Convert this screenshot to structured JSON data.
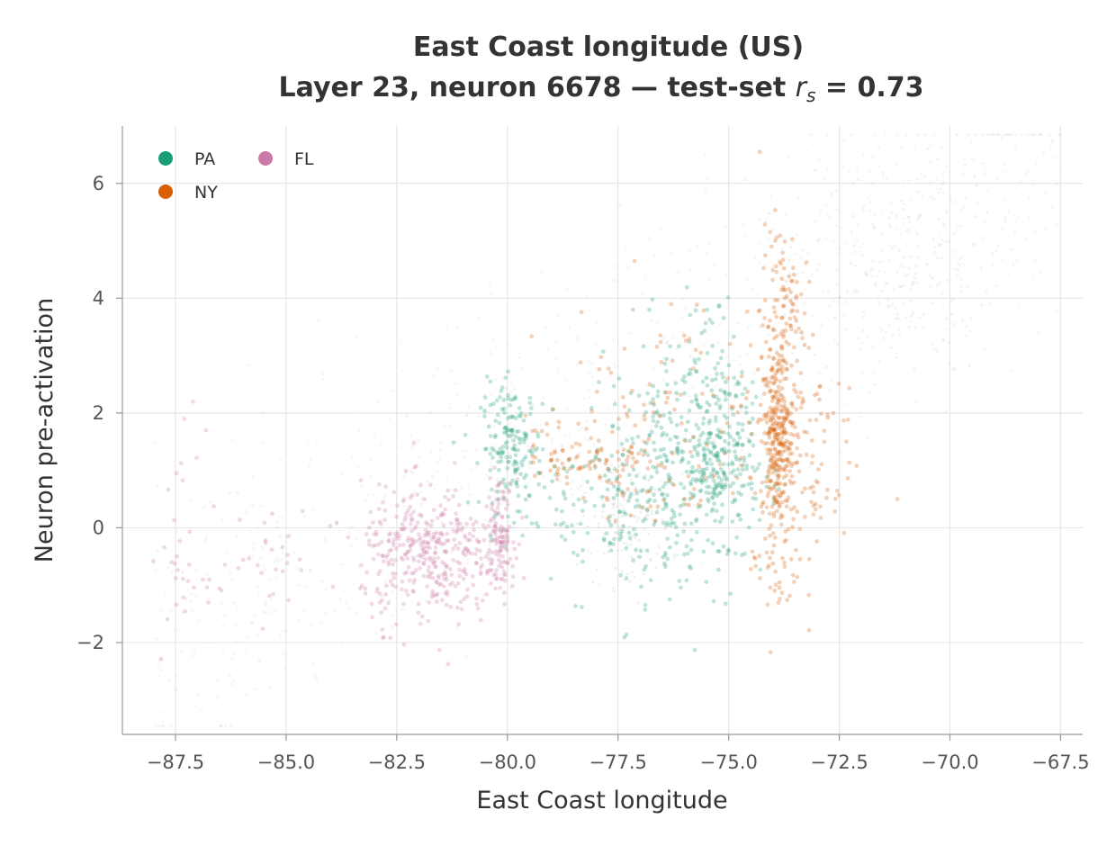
{
  "chart_data": {
    "type": "scatter",
    "title_line1": "East Coast longitude (US)",
    "title_line2_prefix": "Layer 23, neuron 6678 — test-set ",
    "title_line2_r": "r",
    "title_line2_sub": "s",
    "title_line2_suffix": " = 0.73",
    "xlabel": "East Coast longitude",
    "ylabel": "Neuron pre-activation",
    "xlim": [
      -88.7,
      -67.0
    ],
    "ylim": [
      -3.6,
      7.0
    ],
    "x_ticks": [
      -87.5,
      -85.0,
      -82.5,
      -80.0,
      -77.5,
      -75.0,
      -72.5,
      -70.0,
      -67.5
    ],
    "x_tick_labels": [
      "−87.5",
      "−85.0",
      "−82.5",
      "−80.0",
      "−77.5",
      "−75.0",
      "−72.5",
      "−70.0",
      "−67.5"
    ],
    "y_ticks": [
      -2,
      0,
      2,
      4,
      6
    ],
    "y_tick_labels": [
      "−2",
      "0",
      "2",
      "4",
      "6"
    ],
    "grid": true,
    "legend_placement": "top-left",
    "legend": [
      {
        "label": "PA",
        "color": "#1b9e77"
      },
      {
        "label": "NY",
        "color": "#d95f02"
      },
      {
        "label": "FL",
        "color": "#cc79a7"
      }
    ],
    "background_color": "#aaaaaa",
    "series": [
      {
        "name": "PA",
        "color": "#1b9e77",
        "clusters": [
          {
            "x": -79.9,
            "y": 1.4,
            "n": 170,
            "sx": 0.35,
            "sy": 0.55
          },
          {
            "x": -75.2,
            "y": 0.9,
            "n": 190,
            "sx": 0.45,
            "sy": 0.55
          },
          {
            "x": -76.5,
            "y": 1.2,
            "n": 230,
            "sx": 0.9,
            "sy": 0.75
          },
          {
            "x": -75.5,
            "y": 2.6,
            "n": 90,
            "sx": 0.5,
            "sy": 0.75
          },
          {
            "x": -78.0,
            "y": 0.3,
            "n": 80,
            "sx": 0.9,
            "sy": 0.7
          },
          {
            "x": -76.0,
            "y": -0.6,
            "n": 50,
            "sx": 0.8,
            "sy": 0.6
          }
        ]
      },
      {
        "name": "NY",
        "color": "#d95f02",
        "clusters": [
          {
            "x": -73.9,
            "y": 1.6,
            "n": 300,
            "sx": 0.18,
            "sy": 0.75
          },
          {
            "x": -73.8,
            "y": 3.7,
            "n": 110,
            "sx": 0.25,
            "sy": 0.8
          },
          {
            "x": -73.5,
            "y": 1.4,
            "n": 110,
            "sx": 0.7,
            "sy": 0.9
          },
          {
            "x": -73.9,
            "y": -0.6,
            "n": 50,
            "sx": 0.3,
            "sy": 0.7
          },
          {
            "x": -78.9,
            "y": 1.3,
            "n": 45,
            "sx": 0.35,
            "sy": 0.35
          },
          {
            "x": -77.6,
            "y": 1.2,
            "n": 50,
            "sx": 0.45,
            "sy": 0.35
          },
          {
            "x": -76.3,
            "y": 1.2,
            "n": 60,
            "sx": 0.9,
            "sy": 0.6
          },
          {
            "x": -76.6,
            "y": 2.8,
            "n": 50,
            "sx": 1.2,
            "sy": 0.75
          }
        ]
      },
      {
        "name": "FL",
        "color": "#cc79a7",
        "clusters": [
          {
            "x": -81.8,
            "y": -0.5,
            "n": 380,
            "sx": 0.75,
            "sy": 0.6
          },
          {
            "x": -80.2,
            "y": -0.1,
            "n": 130,
            "sx": 0.18,
            "sy": 0.45
          },
          {
            "x": -87.3,
            "y": -0.4,
            "n": 30,
            "sx": 0.25,
            "sy": 1.1
          },
          {
            "x": -85.5,
            "y": -0.6,
            "n": 30,
            "sx": 0.7,
            "sy": 0.5
          }
        ]
      }
    ]
  }
}
